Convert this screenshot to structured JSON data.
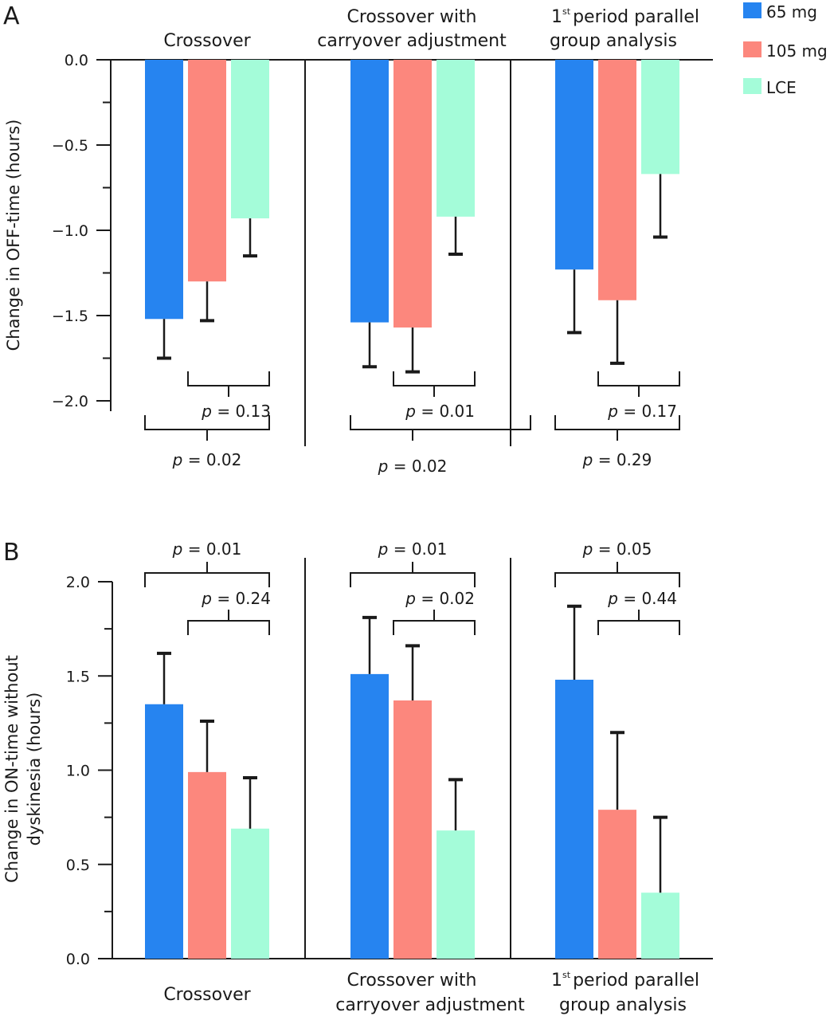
{
  "legend": [
    {
      "label": "65 mg",
      "color": "#2684f0"
    },
    {
      "label": "105 mg",
      "color": "#fc877d"
    },
    {
      "label": "LCE",
      "color": "#a4fcd9"
    }
  ],
  "chart_data": [
    {
      "panel": "A",
      "type": "bar",
      "title": "",
      "xlabel": "",
      "ylabel": "Change in OFF-time (hours)",
      "ylim": [
        -2.0,
        0.0
      ],
      "yticks": [
        "0.0",
        "-0.5",
        "-1.0",
        "-1.5",
        "-2.0"
      ],
      "ytick_values": [
        0.0,
        -0.5,
        -1.0,
        -1.5,
        -2.0
      ],
      "grid": false,
      "legend_position": "top-right",
      "categories": [
        {
          "line1": "Crossover",
          "line2": "",
          "ordinal_sup": ""
        },
        {
          "line1": "Crossover with",
          "line2": "carryover adjustment",
          "ordinal_sup": ""
        },
        {
          "line1": "period parallel",
          "line2": "group analysis",
          "ordinal_sup": "st",
          "ordinal_num": "1"
        }
      ],
      "series": [
        {
          "name": "65 mg",
          "values": [
            -1.52,
            -1.54,
            -1.23
          ],
          "error_ends": [
            -1.75,
            -1.8,
            -1.6
          ]
        },
        {
          "name": "105 mg",
          "values": [
            -1.3,
            -1.57,
            -1.41
          ],
          "error_ends": [
            -1.53,
            -1.83,
            -1.78
          ]
        },
        {
          "name": "LCE",
          "values": [
            -0.93,
            -0.92,
            -0.67
          ],
          "error_ends": [
            -1.15,
            -1.14,
            -1.04
          ]
        }
      ],
      "comparisons": [
        {
          "group": 0,
          "pair": "105 mg vs LCE",
          "label_italic": "p",
          "label_rest": " = 0.13"
        },
        {
          "group": 0,
          "pair": "65 mg vs LCE",
          "label_italic": "p",
          "label_rest": " = 0.02"
        },
        {
          "group": 1,
          "pair": "105 mg vs LCE",
          "label_italic": "p",
          "label_rest": " = 0.01"
        },
        {
          "group": 1,
          "pair": "65 mg vs LCE",
          "label_italic": "p",
          "label_rest": " = 0.02"
        },
        {
          "group": 2,
          "pair": "105 mg vs LCE",
          "label_italic": "p",
          "label_rest": " = 0.17"
        },
        {
          "group": 2,
          "pair": "65 mg vs LCE",
          "label_italic": "p",
          "label_rest": " = 0.29"
        }
      ]
    },
    {
      "panel": "B",
      "type": "bar",
      "title": "",
      "xlabel": "",
      "ylabel_line1": "Change in ON-time without",
      "ylabel_line2": "dyskinesia  (hours)",
      "ylim": [
        0.0,
        2.0
      ],
      "yticks": [
        "2.0",
        "1.5",
        "1.0",
        "0.5",
        "0.0"
      ],
      "ytick_values": [
        2.0,
        1.5,
        1.0,
        0.5,
        0.0
      ],
      "grid": false,
      "categories": [
        {
          "line1": "Crossover",
          "line2": "",
          "ordinal_sup": ""
        },
        {
          "line1": "Crossover with",
          "line2": "carryover adjustment",
          "ordinal_sup": ""
        },
        {
          "line1": "period parallel",
          "line2": "group analysis",
          "ordinal_sup": "st",
          "ordinal_num": "1"
        }
      ],
      "series": [
        {
          "name": "65 mg",
          "values": [
            1.35,
            1.51,
            1.48
          ],
          "error_ends": [
            1.62,
            1.81,
            1.87
          ]
        },
        {
          "name": "105 mg",
          "values": [
            0.99,
            1.37,
            0.79
          ],
          "error_ends": [
            1.26,
            1.66,
            1.2
          ]
        },
        {
          "name": "LCE",
          "values": [
            0.69,
            0.68,
            0.35
          ],
          "error_ends": [
            0.96,
            0.95,
            0.75
          ]
        }
      ],
      "comparisons": [
        {
          "group": 0,
          "pair": "65 mg vs LCE",
          "label_italic": "p",
          "label_rest": " = 0.01"
        },
        {
          "group": 0,
          "pair": "105 mg vs LCE",
          "label_italic": "p",
          "label_rest": " = 0.24"
        },
        {
          "group": 1,
          "pair": "65 mg vs LCE",
          "label_italic": "p",
          "label_rest": " = 0.01"
        },
        {
          "group": 1,
          "pair": "105 mg vs LCE",
          "label_italic": "p",
          "label_rest": " = 0.02"
        },
        {
          "group": 2,
          "pair": "65 mg vs LCE",
          "label_italic": "p",
          "label_rest": " = 0.05"
        },
        {
          "group": 2,
          "pair": "105 mg vs LCE",
          "label_italic": "p",
          "label_rest": " = 0.44"
        }
      ]
    }
  ]
}
